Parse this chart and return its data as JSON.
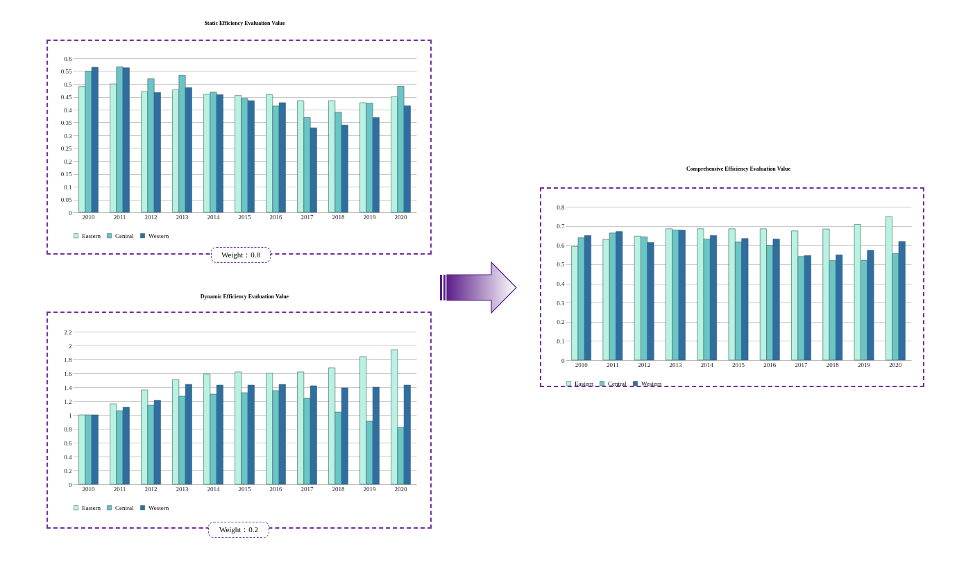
{
  "chart_data": [
    {
      "type": "bar",
      "title": "Static Efficiency Evaluation Value",
      "categories": [
        "2010",
        "2011",
        "2012",
        "2013",
        "2014",
        "2015",
        "2016",
        "2017",
        "2018",
        "2019",
        "2020"
      ],
      "series": [
        {
          "name": "Eastern",
          "color": "#b8f2e2",
          "values": [
            0.49,
            0.5,
            0.47,
            0.477,
            0.46,
            0.455,
            0.458,
            0.435,
            0.435,
            0.427,
            0.45
          ]
        },
        {
          "name": "Central",
          "color": "#6ac5c7",
          "values": [
            0.55,
            0.567,
            0.52,
            0.534,
            0.468,
            0.444,
            0.414,
            0.369,
            0.39,
            0.425,
            0.491
          ]
        },
        {
          "name": "Western",
          "color": "#2e6ea3",
          "values": [
            0.565,
            0.563,
            0.467,
            0.486,
            0.458,
            0.435,
            0.427,
            0.329,
            0.34,
            0.369,
            0.415
          ]
        }
      ],
      "ylim": [
        0,
        0.6
      ],
      "yticks": [
        0,
        0.05,
        0.1,
        0.15,
        0.2,
        0.25,
        0.3,
        0.35,
        0.4,
        0.45,
        0.5,
        0.55,
        0.6
      ],
      "grid": "y",
      "legend": "bottom",
      "annotations": [
        "Weight：0.8"
      ]
    },
    {
      "type": "bar",
      "title": "Dynamic Efficiency Evaluation Value",
      "categories": [
        "2010",
        "2011",
        "2012",
        "2013",
        "2014",
        "2015",
        "2016",
        "2017",
        "2018",
        "2019",
        "2020"
      ],
      "series": [
        {
          "name": "Eastern",
          "color": "#b8f2e2",
          "values": [
            1,
            1.16,
            1.36,
            1.51,
            1.59,
            1.62,
            1.6,
            1.62,
            1.68,
            1.84,
            1.94
          ]
        },
        {
          "name": "Central",
          "color": "#6ac5c7",
          "values": [
            1,
            1.06,
            1.14,
            1.27,
            1.3,
            1.32,
            1.35,
            1.24,
            1.04,
            0.91,
            0.82
          ]
        },
        {
          "name": "Western",
          "color": "#2e6ea3",
          "values": [
            1,
            1.11,
            1.21,
            1.44,
            1.43,
            1.43,
            1.44,
            1.42,
            1.39,
            1.4,
            1.43
          ]
        }
      ],
      "ylim": [
        0,
        2.2
      ],
      "yticks": [
        0,
        0.2,
        0.4,
        0.6,
        0.8,
        1,
        1.2,
        1.4,
        1.6,
        1.8,
        2,
        2.2
      ],
      "grid": "y",
      "legend": "bottom",
      "annotations": [
        "Weight：0.2"
      ]
    },
    {
      "type": "bar",
      "title": "Comprehensive Efficiency Evaluation Value",
      "categories": [
        "2010",
        "2011",
        "2012",
        "2013",
        "2014",
        "2015",
        "2016",
        "2017",
        "2018",
        "2019",
        "2020"
      ],
      "series": [
        {
          "name": "Eastern",
          "color": "#b8f2e2",
          "values": [
            0.592,
            0.63,
            0.647,
            0.685,
            0.685,
            0.685,
            0.685,
            0.674,
            0.684,
            0.708,
            0.748
          ]
        },
        {
          "name": "Central",
          "color": "#6ac5c7",
          "values": [
            0.638,
            0.663,
            0.643,
            0.679,
            0.632,
            0.616,
            0.598,
            0.54,
            0.519,
            0.521,
            0.556
          ]
        },
        {
          "name": "Western",
          "color": "#2e6ea3",
          "values": [
            0.65,
            0.671,
            0.614,
            0.678,
            0.65,
            0.634,
            0.632,
            0.546,
            0.549,
            0.573,
            0.619
          ]
        }
      ],
      "ylim": [
        0,
        0.8
      ],
      "yticks": [
        0,
        0.1,
        0.2,
        0.3,
        0.4,
        0.5,
        0.6,
        0.7,
        0.8
      ],
      "grid": "y",
      "legend": "bottom"
    }
  ]
}
